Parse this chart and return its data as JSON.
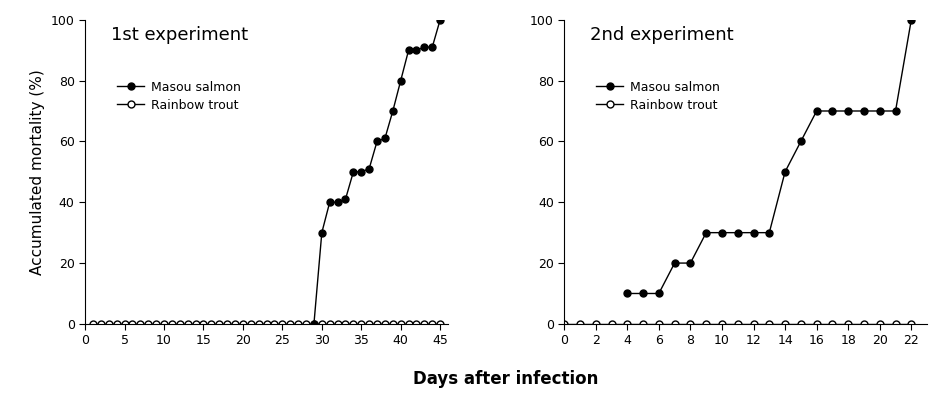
{
  "exp1": {
    "title": "1st experiment",
    "masou_x": [
      29,
      30,
      31,
      32,
      33,
      34,
      35,
      36,
      37,
      38,
      39,
      40,
      41,
      42,
      43,
      44,
      45
    ],
    "masou_y": [
      0,
      30,
      40,
      40,
      41,
      50,
      50,
      51,
      60,
      61,
      70,
      80,
      90,
      90,
      91,
      91,
      100
    ],
    "rainbow_x": [
      1,
      2,
      3,
      4,
      5,
      6,
      7,
      8,
      9,
      10,
      11,
      12,
      13,
      14,
      15,
      16,
      17,
      18,
      19,
      20,
      21,
      22,
      23,
      24,
      25,
      26,
      27,
      28,
      29,
      30,
      31,
      32,
      33,
      34,
      35,
      36,
      37,
      38,
      39,
      40,
      41,
      42,
      43,
      44,
      45
    ],
    "rainbow_y": [
      0,
      0,
      0,
      0,
      0,
      0,
      0,
      0,
      0,
      0,
      0,
      0,
      0,
      0,
      0,
      0,
      0,
      0,
      0,
      0,
      0,
      0,
      0,
      0,
      0,
      0,
      0,
      0,
      0,
      0,
      0,
      0,
      0,
      0,
      0,
      0,
      0,
      0,
      0,
      0,
      0,
      0,
      0,
      0,
      0
    ],
    "xlim": [
      0,
      46
    ],
    "xticks": [
      0,
      5,
      10,
      15,
      20,
      25,
      30,
      35,
      40,
      45
    ],
    "ylim": [
      0,
      100
    ],
    "yticks": [
      0,
      20,
      40,
      60,
      80,
      100
    ]
  },
  "exp2": {
    "title": "2nd experiment",
    "masou_x": [
      4,
      5,
      6,
      7,
      8,
      9,
      10,
      11,
      12,
      13,
      14,
      15,
      16,
      17,
      18,
      19,
      20,
      21,
      22
    ],
    "masou_y": [
      10,
      10,
      10,
      20,
      20,
      30,
      30,
      30,
      30,
      30,
      50,
      60,
      70,
      70,
      70,
      70,
      70,
      70,
      100
    ],
    "rainbow_x": [
      0,
      1,
      2,
      3,
      4,
      5,
      6,
      7,
      8,
      9,
      10,
      11,
      12,
      13,
      14,
      15,
      16,
      17,
      18,
      19,
      20,
      21,
      22
    ],
    "rainbow_y": [
      0,
      0,
      0,
      0,
      0,
      0,
      0,
      0,
      0,
      0,
      0,
      0,
      0,
      0,
      0,
      0,
      0,
      0,
      0,
      0,
      0,
      0,
      0
    ],
    "xlim": [
      0,
      23
    ],
    "xticks": [
      0,
      2,
      4,
      6,
      8,
      10,
      12,
      14,
      16,
      18,
      20,
      22
    ],
    "ylim": [
      0,
      100
    ],
    "yticks": [
      0,
      20,
      40,
      60,
      80,
      100
    ]
  },
  "masou_color": "#000000",
  "rainbow_color": "#000000",
  "masou_markerfacecolor": "#000000",
  "rainbow_markerfacecolor": "#ffffff",
  "legend_masou": "Masou salmon",
  "legend_rainbow": "Rainbow trout",
  "ylabel": "Accumulated mortality (%)",
  "xlabel": "Days after infection",
  "title_fontsize": 13,
  "label_fontsize": 11,
  "tick_fontsize": 9,
  "legend_fontsize": 9,
  "markersize_masou": 5,
  "markersize_rainbow": 5,
  "linewidth": 1.0
}
